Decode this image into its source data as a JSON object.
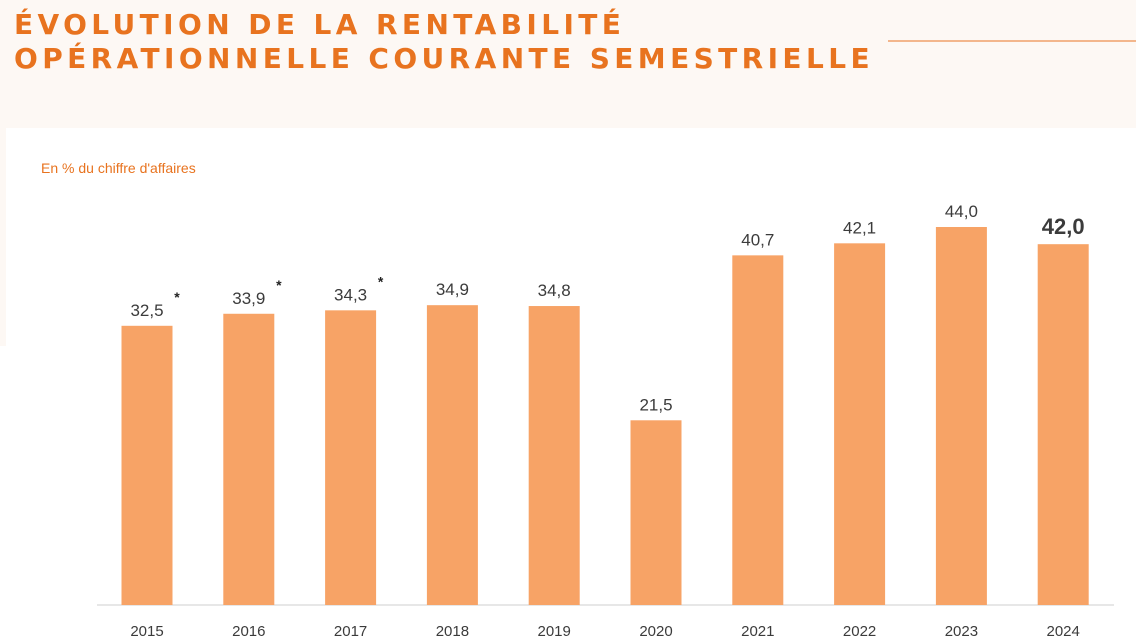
{
  "header": {
    "title_line1": "ÉVOLUTION DE LA RENTABILITÉ",
    "title_line2": "OPÉRATIONNELLE COURANTE SEMESTRIELLE"
  },
  "chart_data": {
    "type": "bar",
    "subtitle": "En % du chiffre d'affaires",
    "categories": [
      "2015",
      "2016",
      "2017",
      "2018",
      "2019",
      "2020",
      "2021",
      "2022",
      "2023",
      "2024"
    ],
    "values": [
      32.5,
      33.9,
      34.3,
      34.9,
      34.8,
      21.5,
      40.7,
      42.1,
      44.0,
      42.0
    ],
    "labels": [
      "32,5",
      "33,9",
      "34,3",
      "34,9",
      "34,8",
      "21,5",
      "40,7",
      "42,1",
      "44,0",
      "42,0"
    ],
    "markers": [
      "*",
      "*",
      "*",
      "",
      "",
      "",
      "",
      "",
      "",
      ""
    ],
    "highlight_index": 9,
    "ylim": [
      0,
      44.0
    ],
    "grid": false,
    "colors": {
      "bar": "#f7a366",
      "accent": "#e8731f",
      "label": "#3b3b3b",
      "axis": "#cfcfcf"
    }
  }
}
